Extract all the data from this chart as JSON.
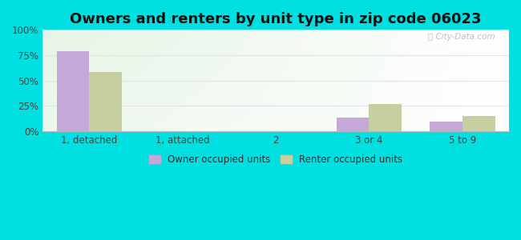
{
  "title": "Owners and renters by unit type in zip code 06023",
  "categories": [
    "1, detached",
    "1, attached",
    "2",
    "3 or 4",
    "5 to 9"
  ],
  "owner_values": [
    79,
    0,
    0,
    13,
    9
  ],
  "renter_values": [
    58,
    0,
    0,
    27,
    15
  ],
  "owner_color": "#c5a8d8",
  "renter_color": "#c5cfa0",
  "ylim": [
    0,
    100
  ],
  "yticks": [
    0,
    25,
    50,
    75,
    100
  ],
  "ytick_labels": [
    "0%",
    "25%",
    "50%",
    "75%",
    "100%"
  ],
  "bar_width": 0.35,
  "bg_color_topleft": "#d4eed4",
  "bg_color_right": "#edfaed",
  "bg_color_bottom": "#f0faf0",
  "outer_bg": "#00e0e0",
  "watermark": "ⓘ City-Data.com",
  "legend_owner": "Owner occupied units",
  "legend_renter": "Renter occupied units",
  "title_fontsize": 13,
  "tick_fontsize": 8.5,
  "grid_color": "#e8e0f0",
  "spine_bottom_color": "#bbbbbb"
}
